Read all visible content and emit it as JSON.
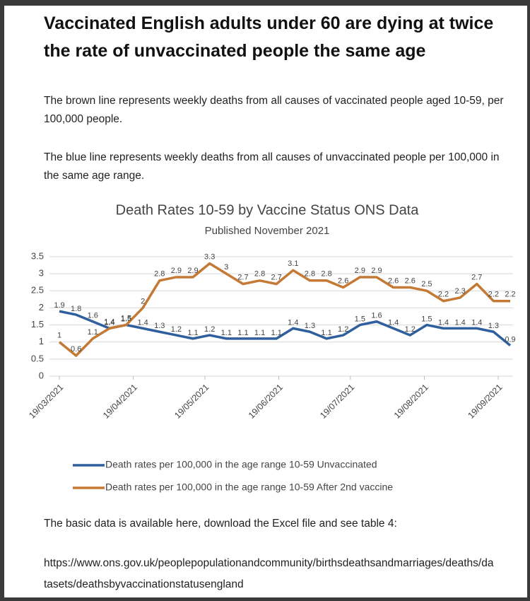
{
  "header": {
    "title": "Vaccinated English adults under 60 are dying at twice the rate of unvaccinated people the same age"
  },
  "paragraphs": [
    "The brown line represents weekly deaths from all causes of vaccinated people aged 10-59, per 100,000 people.",
    "The blue line represents weekly deaths from all causes of unvaccinated people per 100,000 in the same age range."
  ],
  "chart_data": {
    "type": "line",
    "title": "Death Rates 10-59  by Vaccine Status ONS Data",
    "subtitle": "Published November 2021",
    "x": [
      "19/03/2021",
      "26/03/2021",
      "02/04/2021",
      "09/04/2021",
      "16/04/2021",
      "23/04/2021",
      "30/04/2021",
      "07/05/2021",
      "14/05/2021",
      "21/05/2021",
      "28/05/2021",
      "04/06/2021",
      "11/06/2021",
      "18/06/2021",
      "25/06/2021",
      "02/07/2021",
      "09/07/2021",
      "16/07/2021",
      "23/07/2021",
      "30/07/2021",
      "06/08/2021",
      "13/08/2021",
      "20/08/2021",
      "27/08/2021",
      "03/09/2021",
      "10/09/2021",
      "17/09/2021",
      "24/09/2021"
    ],
    "series": [
      {
        "name": "Death rates per 100,000 in the age range 10-59 Unvaccinated",
        "color": "#2f5f9c",
        "values": [
          1.9,
          1.8,
          1.6,
          1.4,
          1.5,
          1.4,
          1.3,
          1.2,
          1.1,
          1.2,
          1.1,
          1.1,
          1.1,
          1.1,
          1.4,
          1.3,
          1.1,
          1.2,
          1.5,
          1.6,
          1.4,
          1.2,
          1.5,
          1.4,
          1.4,
          1.4,
          1.3,
          0.9
        ]
      },
      {
        "name": "Death rates per 100,000 in the age range 10-59 After 2nd vaccine",
        "color": "#c47a35",
        "values": [
          1,
          0.6,
          1.1,
          1.4,
          1.5,
          2,
          2.8,
          2.9,
          2.9,
          3.3,
          3,
          2.7,
          2.8,
          2.7,
          3.1,
          2.8,
          2.8,
          2.6,
          2.9,
          2.9,
          2.6,
          2.6,
          2.5,
          2.2,
          2.3,
          2.7,
          2.2,
          2.2
        ]
      }
    ],
    "xlim": [
      "19/03/2021",
      "24/09/2021"
    ],
    "xticks": [
      "19/03/2021",
      "19/04/2021",
      "19/05/2021",
      "19/06/2021",
      "19/07/2021",
      "19/08/2021",
      "19/09/2021"
    ],
    "ylim": [
      0,
      3.5
    ],
    "yticks": [
      0,
      0.5,
      1,
      1.5,
      2,
      2.5,
      3,
      3.5
    ],
    "grid": true,
    "legend": "bottom"
  },
  "footer": {
    "note": "The basic data is available here, download the Excel file and see table 4:",
    "url": "https://www.ons.gov.uk/peoplepopulationandcommunity/birthsdeathsandmarriages/deaths/datasets/deathsbyvaccinationstatusengland"
  }
}
